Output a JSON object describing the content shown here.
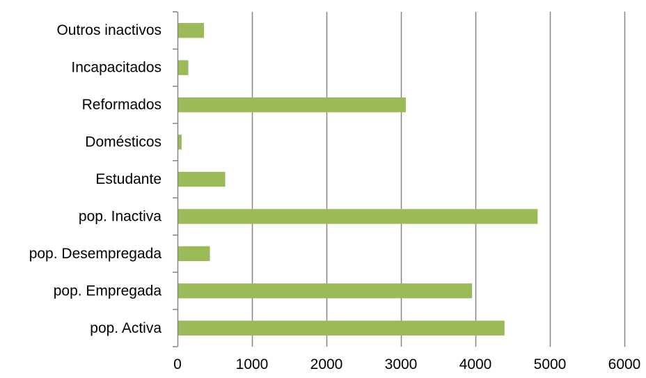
{
  "colors": {
    "bar": "#9bbb59",
    "gridline": "#868686",
    "axis": "#868686",
    "text": "#000000",
    "background": "#ffffff"
  },
  "chart_data": {
    "type": "bar",
    "orientation": "horizontal",
    "title": "",
    "xlabel": "",
    "ylabel": "",
    "categories": [
      "pop. Activa",
      "pop. Empregada",
      "pop. Desempregada",
      "pop. Inactiva",
      "Estudante",
      "Domésticos",
      "Reformados",
      "Incapacitados",
      "Outros inactivos"
    ],
    "values": [
      4390,
      3955,
      435,
      4835,
      640,
      55,
      3065,
      145,
      355
    ],
    "xlim": [
      0,
      6000
    ],
    "x_ticks": [
      0,
      1000,
      2000,
      3000,
      4000,
      5000,
      6000
    ],
    "x_tick_labels": [
      "0",
      "1000",
      "2000",
      "3000",
      "4000",
      "5000",
      "6000"
    ],
    "grid": "vertical major gridlines",
    "legend": "none"
  }
}
